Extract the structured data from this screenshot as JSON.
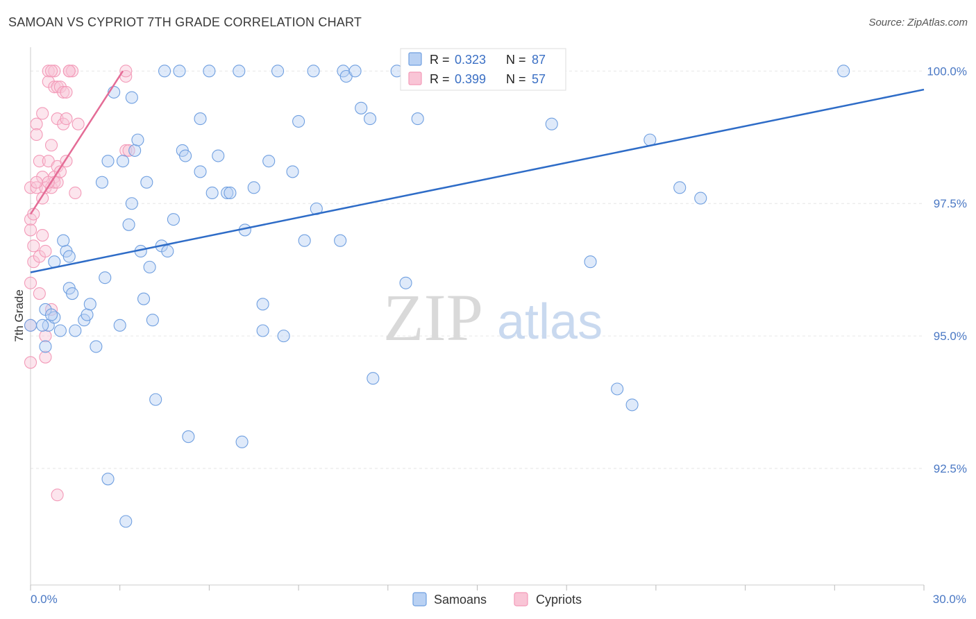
{
  "title": "SAMOAN VS CYPRIOT 7TH GRADE CORRELATION CHART",
  "source": "Source: ZipAtlas.com",
  "watermark": {
    "zip": "ZIP",
    "atlas": "atlas"
  },
  "colors": {
    "samoans": "#6f9fe0",
    "cypriots": "#f39ab8",
    "samoans_line": "#2e6cc7",
    "cypriots_line": "#e46c96",
    "tick": "#4a78c4",
    "grid": "#e6e6e6"
  },
  "legend": {
    "rows": [
      {
        "r_label": "R = ",
        "r_value": "0.323",
        "n_label": "N = ",
        "n_value": "87"
      },
      {
        "r_label": "R = ",
        "r_value": "0.399",
        "n_label": "N = ",
        "n_value": "57"
      }
    ]
  },
  "chart_data": {
    "type": "scatter",
    "title": "SAMOAN VS CYPRIOT 7TH GRADE CORRELATION CHART",
    "xlabel": "",
    "ylabel": "7th Grade",
    "xlim": [
      0,
      30
    ],
    "ylim": [
      90.3,
      100.45
    ],
    "x_tick_labels": [
      "0.0%",
      "30.0%"
    ],
    "y_ticks": [
      92.5,
      95.0,
      97.5,
      100.0
    ],
    "y_tick_labels": [
      "92.5%",
      "95.0%",
      "97.5%",
      "100.0%"
    ],
    "grid": true,
    "legend_position": "top-center",
    "series": [
      {
        "name": "Samoans",
        "points": [
          [
            0.0,
            95.2
          ],
          [
            0.5,
            95.5
          ],
          [
            0.6,
            95.2
          ],
          [
            0.8,
            95.35
          ],
          [
            0.7,
            95.4
          ],
          [
            0.5,
            94.8
          ],
          [
            0.8,
            96.4
          ],
          [
            1.2,
            96.6
          ],
          [
            1.1,
            96.8
          ],
          [
            1.3,
            96.5
          ],
          [
            1.3,
            95.9
          ],
          [
            1.4,
            95.8
          ],
          [
            1.5,
            95.1
          ],
          [
            1.8,
            95.3
          ],
          [
            1.9,
            95.4
          ],
          [
            2.0,
            95.6
          ],
          [
            2.2,
            94.8
          ],
          [
            2.4,
            97.9
          ],
          [
            2.5,
            96.1
          ],
          [
            2.6,
            98.3
          ],
          [
            2.8,
            99.6
          ],
          [
            3.0,
            95.2
          ],
          [
            3.1,
            98.3
          ],
          [
            3.2,
            91.5
          ],
          [
            3.3,
            97.1
          ],
          [
            3.4,
            97.5
          ],
          [
            3.5,
            98.5
          ],
          [
            3.6,
            98.7
          ],
          [
            3.7,
            96.6
          ],
          [
            3.8,
            95.7
          ],
          [
            3.9,
            97.9
          ],
          [
            4.0,
            96.3
          ],
          [
            4.1,
            95.3
          ],
          [
            4.2,
            93.8
          ],
          [
            4.4,
            96.7
          ],
          [
            4.5,
            100.0
          ],
          [
            4.6,
            96.6
          ],
          [
            4.8,
            97.2
          ],
          [
            5.0,
            100.0
          ],
          [
            5.1,
            98.5
          ],
          [
            5.2,
            98.4
          ],
          [
            5.3,
            93.1
          ],
          [
            5.7,
            99.1
          ],
          [
            5.7,
            98.1
          ],
          [
            6.0,
            100.0
          ],
          [
            6.1,
            97.7
          ],
          [
            6.3,
            98.4
          ],
          [
            6.6,
            97.7
          ],
          [
            6.7,
            97.7
          ],
          [
            7.0,
            100.0
          ],
          [
            7.1,
            93.0
          ],
          [
            7.2,
            97.0
          ],
          [
            7.5,
            97.8
          ],
          [
            7.8,
            95.1
          ],
          [
            7.8,
            95.6
          ],
          [
            8.0,
            98.3
          ],
          [
            8.3,
            100.0
          ],
          [
            8.5,
            95.0
          ],
          [
            8.8,
            98.1
          ],
          [
            9.0,
            99.05
          ],
          [
            9.2,
            96.8
          ],
          [
            9.6,
            97.4
          ],
          [
            10.4,
            96.8
          ],
          [
            10.5,
            100.0
          ],
          [
            10.6,
            99.9
          ],
          [
            10.9,
            100.0
          ],
          [
            11.1,
            99.3
          ],
          [
            11.4,
            99.1
          ],
          [
            11.5,
            94.2
          ],
          [
            12.3,
            100.0
          ],
          [
            12.6,
            96.0
          ],
          [
            13.0,
            99.1
          ],
          [
            14.0,
            100.0
          ],
          [
            14.6,
            100.0
          ],
          [
            17.5,
            99.0
          ],
          [
            18.8,
            96.4
          ],
          [
            19.7,
            94.0
          ],
          [
            20.2,
            93.7
          ],
          [
            20.8,
            98.7
          ],
          [
            21.8,
            97.8
          ],
          [
            22.5,
            97.6
          ],
          [
            27.3,
            100.0
          ],
          [
            2.6,
            92.3
          ],
          [
            0.4,
            95.2
          ],
          [
            1.0,
            95.1
          ],
          [
            3.4,
            99.5
          ],
          [
            9.5,
            100.0
          ]
        ]
      },
      {
        "name": "Cypriots",
        "points": [
          [
            0.0,
            95.2
          ],
          [
            0.0,
            94.5
          ],
          [
            0.0,
            97.2
          ],
          [
            0.0,
            97.0
          ],
          [
            0.0,
            96.0
          ],
          [
            0.0,
            97.8
          ],
          [
            0.1,
            96.4
          ],
          [
            0.1,
            97.3
          ],
          [
            0.1,
            96.7
          ],
          [
            0.2,
            99.0
          ],
          [
            0.2,
            98.8
          ],
          [
            0.2,
            97.8
          ],
          [
            0.3,
            98.3
          ],
          [
            0.3,
            96.5
          ],
          [
            0.3,
            95.8
          ],
          [
            0.4,
            99.2
          ],
          [
            0.4,
            98.0
          ],
          [
            0.4,
            97.6
          ],
          [
            0.4,
            96.9
          ],
          [
            0.5,
            97.8
          ],
          [
            0.5,
            96.6
          ],
          [
            0.5,
            95.0
          ],
          [
            0.5,
            94.6
          ],
          [
            0.6,
            98.3
          ],
          [
            0.6,
            100.0
          ],
          [
            0.6,
            99.8
          ],
          [
            0.7,
            98.6
          ],
          [
            0.7,
            97.8
          ],
          [
            0.7,
            95.5
          ],
          [
            0.8,
            100.0
          ],
          [
            0.8,
            99.7
          ],
          [
            0.8,
            98.0
          ],
          [
            0.8,
            97.9
          ],
          [
            0.9,
            99.1
          ],
          [
            0.9,
            99.7
          ],
          [
            0.9,
            98.2
          ],
          [
            0.9,
            97.9
          ],
          [
            0.9,
            92.0
          ],
          [
            1.0,
            99.7
          ],
          [
            1.0,
            98.1
          ],
          [
            1.1,
            99.0
          ],
          [
            1.1,
            99.6
          ],
          [
            1.2,
            99.1
          ],
          [
            1.2,
            98.3
          ],
          [
            1.2,
            99.6
          ],
          [
            1.3,
            100.0
          ],
          [
            1.4,
            100.0
          ],
          [
            1.5,
            97.7
          ],
          [
            1.6,
            99.0
          ],
          [
            3.2,
            99.9
          ],
          [
            3.2,
            100.0
          ],
          [
            3.2,
            98.5
          ],
          [
            3.3,
            98.5
          ],
          [
            1.3,
            100.0
          ],
          [
            0.7,
            100.0
          ],
          [
            0.2,
            97.9
          ],
          [
            0.6,
            97.9
          ]
        ]
      }
    ],
    "trend_lines": [
      {
        "name": "Samoans",
        "x": [
          0,
          30
        ],
        "y": [
          96.2,
          99.65
        ]
      },
      {
        "name": "Cypriots",
        "x": [
          0,
          3.1
        ],
        "y": [
          97.3,
          100.0
        ]
      }
    ]
  },
  "bottom_legend": [
    "Samoans",
    "Cypriots"
  ]
}
